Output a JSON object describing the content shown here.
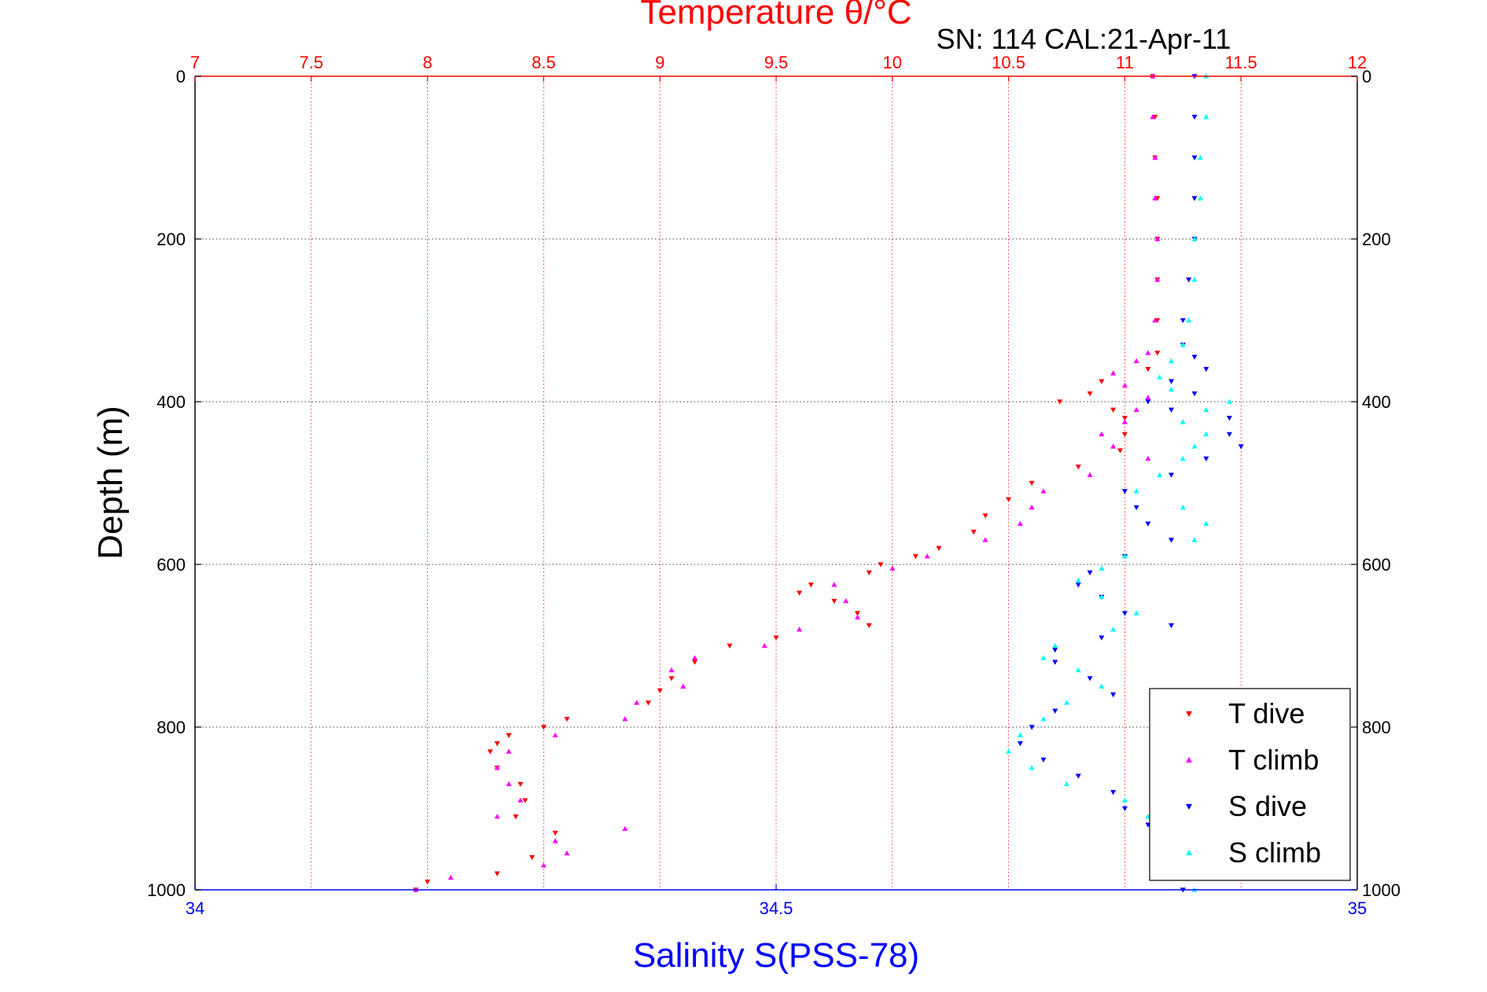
{
  "chart_data": {
    "type": "scatter",
    "title": "Temperature θ/°C",
    "annotation": "SN: 114  CAL:21-Apr-11",
    "ylabel": "Depth (m)",
    "xlabel_bottom": "Salinity S(PSS-78)",
    "xlabel_top": "Temperature θ/°C",
    "grid": true,
    "legend_position": "bottom-right",
    "colors": {
      "temperature_axis": "#ff0000",
      "salinity_axis": "#0000ff",
      "t_dive": "#ff0000",
      "t_climb": "#ff00ff",
      "s_dive": "#0000ff",
      "s_climb": "#00ffff"
    },
    "y_axis": {
      "range": [
        0,
        1000
      ],
      "reversed": true,
      "ticks": [
        0,
        200,
        400,
        600,
        800,
        1000
      ],
      "tick_labels": [
        "0",
        "200",
        "400",
        "600",
        "800",
        "1000"
      ]
    },
    "x_top_axis": {
      "range": [
        7,
        12
      ],
      "ticks": [
        7,
        7.5,
        8,
        8.5,
        9,
        9.5,
        10,
        10.5,
        11,
        11.5,
        12
      ],
      "tick_labels": [
        "7",
        "7.5",
        "8",
        "8.5",
        "9",
        "9.5",
        "10",
        "10.5",
        "11",
        "11.5",
        "12"
      ]
    },
    "x_bottom_axis": {
      "range": [
        34,
        35
      ],
      "ticks": [
        34,
        34.5,
        35
      ],
      "tick_labels": [
        "34",
        "34.5",
        "35"
      ]
    },
    "series": [
      {
        "name": "T dive",
        "axis": "temperature",
        "marker": "triangle-down",
        "color": "#ff0000",
        "depth": [
          0,
          50,
          100,
          150,
          200,
          250,
          300,
          340,
          360,
          375,
          390,
          400,
          410,
          420,
          440,
          460,
          480,
          500,
          520,
          540,
          560,
          580,
          590,
          600,
          610,
          625,
          635,
          645,
          660,
          675,
          690,
          700,
          720,
          740,
          755,
          770,
          790,
          800,
          810,
          820,
          830,
          850,
          870,
          890,
          910,
          930,
          960,
          980,
          990,
          1000
        ],
        "values": [
          11.12,
          11.13,
          11.13,
          11.14,
          11.14,
          11.14,
          11.14,
          11.14,
          11.1,
          10.9,
          10.85,
          10.72,
          10.95,
          11.0,
          11.0,
          10.98,
          10.8,
          10.6,
          10.5,
          10.4,
          10.35,
          10.2,
          10.1,
          9.95,
          9.9,
          9.65,
          9.6,
          9.75,
          9.85,
          9.9,
          9.5,
          9.3,
          9.15,
          9.05,
          9.0,
          8.95,
          8.6,
          8.5,
          8.35,
          8.3,
          8.27,
          8.3,
          8.4,
          8.42,
          8.38,
          8.55,
          8.45,
          8.3,
          8.0,
          7.95
        ]
      },
      {
        "name": "T climb",
        "axis": "temperature",
        "marker": "triangle-up",
        "color": "#ff00ff",
        "depth": [
          0,
          50,
          100,
          150,
          200,
          250,
          300,
          340,
          350,
          365,
          380,
          395,
          410,
          425,
          440,
          455,
          470,
          490,
          510,
          530,
          550,
          570,
          590,
          605,
          625,
          645,
          665,
          680,
          700,
          715,
          730,
          750,
          770,
          790,
          810,
          830,
          850,
          870,
          890,
          910,
          925,
          940,
          955,
          970,
          985,
          1000
        ],
        "values": [
          11.12,
          11.12,
          11.13,
          11.13,
          11.14,
          11.14,
          11.13,
          11.1,
          11.05,
          10.95,
          11.0,
          11.1,
          11.05,
          11.0,
          10.9,
          10.95,
          11.1,
          10.85,
          10.65,
          10.6,
          10.55,
          10.4,
          10.15,
          10.0,
          9.75,
          9.8,
          9.85,
          9.6,
          9.45,
          9.15,
          9.05,
          9.1,
          8.9,
          8.85,
          8.55,
          8.35,
          8.3,
          8.35,
          8.4,
          8.3,
          8.85,
          8.55,
          8.6,
          8.5,
          8.1,
          7.95
        ]
      },
      {
        "name": "S dive",
        "axis": "salinity",
        "marker": "triangle-down",
        "color": "#0000ff",
        "depth": [
          0,
          50,
          100,
          150,
          200,
          250,
          300,
          330,
          345,
          360,
          375,
          390,
          400,
          410,
          420,
          440,
          455,
          470,
          490,
          510,
          530,
          550,
          570,
          590,
          610,
          625,
          640,
          660,
          675,
          690,
          705,
          720,
          740,
          760,
          780,
          800,
          820,
          840,
          860,
          880,
          900,
          920,
          950,
          980,
          1000
        ],
        "values": [
          34.86,
          34.86,
          34.86,
          34.86,
          34.86,
          34.855,
          34.85,
          34.85,
          34.86,
          34.87,
          34.84,
          34.86,
          34.82,
          34.84,
          34.89,
          34.89,
          34.9,
          34.87,
          34.84,
          34.8,
          34.81,
          34.82,
          34.84,
          34.8,
          34.77,
          34.76,
          34.78,
          34.8,
          34.84,
          34.78,
          34.74,
          34.74,
          34.77,
          34.79,
          34.74,
          34.72,
          34.71,
          34.73,
          34.76,
          34.79,
          34.8,
          34.82,
          34.83,
          34.84,
          34.85
        ]
      },
      {
        "name": "S climb",
        "axis": "salinity",
        "marker": "triangle-up",
        "color": "#00ffff",
        "depth": [
          0,
          50,
          100,
          150,
          200,
          250,
          300,
          330,
          350,
          370,
          385,
          400,
          410,
          425,
          440,
          455,
          470,
          490,
          510,
          530,
          550,
          570,
          590,
          605,
          620,
          640,
          660,
          680,
          700,
          715,
          730,
          750,
          770,
          790,
          810,
          830,
          850,
          870,
          890,
          910,
          940,
          970,
          1000
        ],
        "values": [
          34.87,
          34.87,
          34.865,
          34.865,
          34.86,
          34.86,
          34.855,
          34.85,
          34.84,
          34.83,
          34.84,
          34.89,
          34.87,
          34.85,
          34.87,
          34.86,
          34.85,
          34.83,
          34.81,
          34.85,
          34.87,
          34.86,
          34.8,
          34.78,
          34.76,
          34.78,
          34.81,
          34.79,
          34.74,
          34.73,
          34.76,
          34.78,
          34.75,
          34.73,
          34.71,
          34.7,
          34.72,
          34.75,
          34.8,
          34.82,
          34.84,
          34.85,
          34.86
        ]
      }
    ]
  }
}
